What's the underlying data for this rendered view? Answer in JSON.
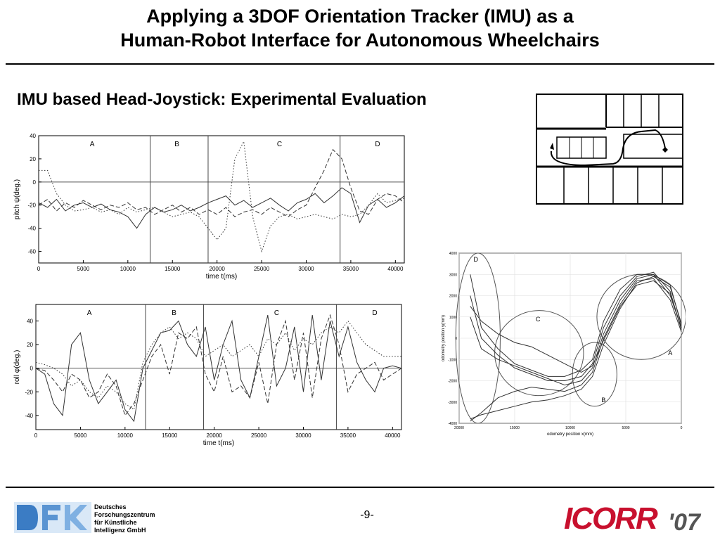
{
  "slide": {
    "title_line1": "Applying a 3DOF Orientation Tracker (IMU) as a",
    "title_line2": "Human-Robot Interface for Autonomous Wheelchairs",
    "subtitle": "IMU based Head-Joystick: Experimental Evaluation",
    "page_number": "-9-"
  },
  "footer": {
    "dfki_text": [
      "Deutsches",
      "Forschungszentrum",
      "für Künstliche",
      "Intelligenz GmbH"
    ],
    "icorr_logo": "ICORR'07"
  },
  "colors": {
    "accent_red": "#c8102e",
    "dfki_blue": "#3b7cc4",
    "line": "#333333"
  },
  "chart_data": [
    {
      "type": "line",
      "xlabel": "time t(ms)",
      "ylabel": "pitch ψ(deg.)",
      "xlim": [
        0,
        41000
      ],
      "ylim": [
        -70,
        40
      ],
      "xticks": [
        0,
        5000,
        10000,
        15000,
        20000,
        25000,
        30000,
        35000,
        40000
      ],
      "yticks": [
        40,
        20,
        0,
        -20,
        -40,
        -60
      ],
      "zero_line": true,
      "section_dividers": [
        12500,
        19000,
        33800
      ],
      "section_labels": [
        {
          "label": "A",
          "x": 6000
        },
        {
          "label": "B",
          "x": 15500
        },
        {
          "label": "C",
          "x": 27000
        },
        {
          "label": "D",
          "x": 38000
        }
      ],
      "series": [
        {
          "style": "solid",
          "x": [
            0,
            1000,
            2000,
            3000,
            4000,
            5000,
            6000,
            7000,
            8000,
            9000,
            10000,
            11000,
            12000,
            13000,
            14000,
            15000,
            16000,
            17000,
            18000,
            19000,
            20000,
            21000,
            22000,
            23000,
            24000,
            25000,
            26000,
            27000,
            28000,
            29000,
            30000,
            31000,
            32000,
            33000,
            34000,
            35000,
            36000,
            37000,
            38000,
            39000,
            40000,
            41000
          ],
          "y": [
            -18,
            -22,
            -15,
            -25,
            -20,
            -18,
            -22,
            -19,
            -24,
            -26,
            -30,
            -40,
            -28,
            -22,
            -26,
            -24,
            -20,
            -25,
            -22,
            -18,
            -15,
            -12,
            -20,
            -16,
            -22,
            -18,
            -14,
            -20,
            -25,
            -18,
            -15,
            -10,
            -18,
            -12,
            -5,
            -10,
            -35,
            -20,
            -15,
            -22,
            -18,
            -12
          ]
        },
        {
          "style": "dashed",
          "x": [
            0,
            1000,
            2000,
            3000,
            4000,
            5000,
            6000,
            7000,
            8000,
            9000,
            10000,
            11000,
            12000,
            13000,
            14000,
            15000,
            16000,
            17000,
            18000,
            19000,
            20000,
            21000,
            22000,
            23000,
            24000,
            25000,
            26000,
            27000,
            28000,
            29000,
            30000,
            31000,
            32000,
            33000,
            34000,
            35000,
            36000,
            37000,
            38000,
            39000,
            40000,
            41000
          ],
          "y": [
            -20,
            -15,
            -25,
            -18,
            -22,
            -16,
            -20,
            -24,
            -20,
            -22,
            -18,
            -24,
            -22,
            -28,
            -24,
            -20,
            -26,
            -22,
            -28,
            -24,
            -28,
            -22,
            -30,
            -26,
            -24,
            -28,
            -22,
            -26,
            -30,
            -24,
            -20,
            -5,
            10,
            28,
            20,
            -5,
            -25,
            -28,
            -15,
            -10,
            -12,
            -18
          ]
        },
        {
          "style": "dotted",
          "x": [
            0,
            1000,
            2000,
            3000,
            4000,
            5000,
            6000,
            7000,
            8000,
            9000,
            10000,
            11000,
            12000,
            13000,
            14000,
            15000,
            16000,
            17000,
            18000,
            19000,
            20000,
            21000,
            22000,
            23000,
            24000,
            25000,
            26000,
            27000,
            28000,
            29000,
            30000,
            31000,
            32000,
            33000,
            34000,
            35000,
            36000,
            37000,
            38000,
            39000,
            40000,
            41000
          ],
          "y": [
            10,
            10,
            -10,
            -20,
            -25,
            -24,
            -22,
            -26,
            -24,
            -28,
            -22,
            -26,
            -24,
            -22,
            -26,
            -30,
            -28,
            -26,
            -30,
            -40,
            -50,
            -40,
            20,
            35,
            -30,
            -60,
            -38,
            -30,
            -28,
            -32,
            -30,
            -28,
            -30,
            -32,
            -28,
            -30,
            -28,
            -20,
            -10,
            -18,
            -16,
            -14
          ]
        }
      ]
    },
    {
      "type": "line",
      "xlabel": "time t(ms)",
      "ylabel": "roll φ(deg.)",
      "xlim": [
        0,
        41000
      ],
      "ylim": [
        -52,
        54
      ],
      "xticks": [
        0,
        5000,
        10000,
        15000,
        20000,
        25000,
        30000,
        35000,
        40000
      ],
      "yticks": [
        40,
        20,
        0,
        -20,
        -40
      ],
      "zero_line": true,
      "section_dividers": [
        12300,
        18800,
        33700
      ],
      "section_labels": [
        {
          "label": "A",
          "x": 6000
        },
        {
          "label": "B",
          "x": 15500
        },
        {
          "label": "C",
          "x": 27000
        },
        {
          "label": "D",
          "x": 38000
        }
      ],
      "series": [
        {
          "style": "solid",
          "x": [
            0,
            1000,
            2000,
            3000,
            4000,
            5000,
            6000,
            7000,
            8000,
            9000,
            10000,
            11000,
            12000,
            13000,
            14000,
            15000,
            16000,
            17000,
            18000,
            19000,
            20000,
            21000,
            22000,
            23000,
            24000,
            25000,
            26000,
            27000,
            28000,
            29000,
            30000,
            31000,
            32000,
            33000,
            34000,
            35000,
            36000,
            37000,
            38000,
            39000,
            40000,
            41000
          ],
          "y": [
            0,
            -5,
            -30,
            -40,
            20,
            30,
            -10,
            -30,
            -20,
            -10,
            -35,
            -45,
            0,
            15,
            30,
            32,
            40,
            20,
            10,
            35,
            -10,
            20,
            40,
            -10,
            -25,
            10,
            45,
            -15,
            0,
            35,
            -20,
            45,
            -10,
            40,
            10,
            35,
            5,
            -10,
            -20,
            0,
            2,
            0
          ]
        },
        {
          "style": "dashed",
          "x": [
            0,
            1000,
            2000,
            3000,
            4000,
            5000,
            6000,
            7000,
            8000,
            9000,
            10000,
            11000,
            12000,
            13000,
            14000,
            15000,
            16000,
            17000,
            18000,
            19000,
            20000,
            21000,
            22000,
            23000,
            24000,
            25000,
            26000,
            27000,
            28000,
            29000,
            30000,
            31000,
            32000,
            33000,
            34000,
            35000,
            36000,
            37000,
            38000,
            39000,
            40000,
            41000
          ],
          "y": [
            0,
            -2,
            -10,
            -20,
            -5,
            -10,
            -25,
            -20,
            -5,
            -15,
            -40,
            -30,
            -10,
            10,
            20,
            -5,
            30,
            25,
            35,
            -5,
            -20,
            10,
            -20,
            -15,
            -25,
            5,
            -30,
            20,
            40,
            -10,
            30,
            -25,
            25,
            45,
            20,
            -20,
            -5,
            0,
            5,
            -10,
            -5,
            0
          ]
        },
        {
          "style": "dotted",
          "x": [
            0,
            1000,
            2000,
            3000,
            4000,
            5000,
            6000,
            7000,
            8000,
            9000,
            10000,
            11000,
            12000,
            13000,
            14000,
            15000,
            16000,
            17000,
            18000,
            19000,
            20000,
            21000,
            22000,
            23000,
            24000,
            25000,
            26000,
            27000,
            28000,
            29000,
            30000,
            31000,
            32000,
            33000,
            34000,
            35000,
            36000,
            37000,
            38000,
            39000,
            40000,
            41000
          ],
          "y": [
            5,
            3,
            0,
            -5,
            -15,
            -10,
            -20,
            -25,
            -15,
            -20,
            -30,
            -35,
            5,
            20,
            30,
            35,
            25,
            30,
            25,
            10,
            15,
            20,
            10,
            15,
            20,
            10,
            25,
            20,
            30,
            15,
            25,
            20,
            30,
            35,
            30,
            40,
            30,
            20,
            15,
            10,
            10,
            10
          ]
        }
      ]
    },
    {
      "type": "line",
      "xlabel": "odometry position x(mm)",
      "ylabel": "odometry position y(mm)",
      "xlim": [
        20000,
        0
      ],
      "ylim": [
        -4000,
        4000
      ],
      "xticks": [
        20000,
        15000,
        10000,
        5000,
        0
      ],
      "yticks": [
        4000,
        3000,
        2000,
        1000,
        0,
        -1000,
        -2000,
        -3000,
        -4000
      ],
      "region_labels": [
        {
          "label": "D",
          "x": 18500,
          "y": 3600
        },
        {
          "label": "C",
          "x": 12900,
          "y": 800
        },
        {
          "label": "A",
          "x": 1000,
          "y": -800
        },
        {
          "label": "B",
          "x": 7000,
          "y": -3000
        }
      ],
      "regions": [
        {
          "name": "D",
          "cx": 18300,
          "cy": 0,
          "rx": 2000,
          "ry": 4000
        },
        {
          "name": "C",
          "cx": 12800,
          "cy": -700,
          "rx": 4000,
          "ry": 2000
        },
        {
          "name": "A",
          "cx": 3600,
          "cy": 1000,
          "rx": 4000,
          "ry": 2000
        },
        {
          "name": "B",
          "cx": 7800,
          "cy": -1700,
          "rx": 2000,
          "ry": 1500
        }
      ],
      "series": [
        {
          "x": [
            0,
            1000,
            2500,
            4000,
            5500,
            7000,
            8000,
            9000,
            10500,
            12000,
            13500,
            15000,
            16500,
            18000,
            19000
          ],
          "y": [
            500,
            2000,
            3000,
            3000,
            2300,
            800,
            -1000,
            -1500,
            -1800,
            -1800,
            -1500,
            -1200,
            -500,
            500,
            3000
          ]
        },
        {
          "x": [
            0,
            1000,
            2500,
            4000,
            5500,
            7000,
            8000,
            9000,
            10500,
            12000,
            13500,
            15000,
            16500,
            18000,
            19000
          ],
          "y": [
            400,
            2200,
            3100,
            2900,
            2000,
            500,
            -1200,
            -1800,
            -2000,
            -2000,
            -1700,
            -1400,
            -800,
            0,
            2000
          ]
        },
        {
          "x": [
            0,
            1000,
            2500,
            4000,
            5500,
            7000,
            8000,
            9000,
            10500,
            12000,
            13500,
            15000,
            16500,
            18000,
            19000
          ],
          "y": [
            600,
            2500,
            3000,
            2800,
            1800,
            200,
            -1400,
            -2000,
            -2200,
            -1900,
            -1600,
            -1300,
            -1000,
            -500,
            1000
          ]
        },
        {
          "x": [
            0,
            1000,
            2500,
            4000,
            5500,
            7000,
            8000,
            9000,
            10500,
            12000,
            13500,
            15000,
            16500,
            18000,
            19000
          ],
          "y": [
            300,
            1800,
            2800,
            2700,
            1600,
            0,
            -1600,
            -2200,
            -2500,
            -2400,
            -2300,
            -2500,
            -2800,
            -3500,
            -3900
          ]
        },
        {
          "x": [
            0,
            1000,
            2500,
            4000,
            5500,
            7000,
            8000,
            9000,
            10500,
            12000,
            13500,
            15000,
            16500,
            18000,
            19000
          ],
          "y": [
            700,
            2400,
            2900,
            2600,
            1400,
            -300,
            -1800,
            -2400,
            -2700,
            -2900,
            -3000,
            -3200,
            -3400,
            -3600,
            -3800
          ]
        },
        {
          "x": [
            0,
            1000,
            2500,
            4000,
            5500,
            7000,
            8000,
            9000,
            10500,
            12000,
            13500,
            15000,
            16500,
            18000,
            19000
          ],
          "y": [
            500,
            2100,
            2700,
            2500,
            1500,
            -100,
            -1300,
            -1600,
            -1200,
            -800,
            -400,
            -200,
            200,
            800,
            1500
          ]
        }
      ]
    }
  ],
  "floor_plan": {
    "description_icons": [
      "start-marker-icon",
      "goal-marker-icon"
    ]
  }
}
